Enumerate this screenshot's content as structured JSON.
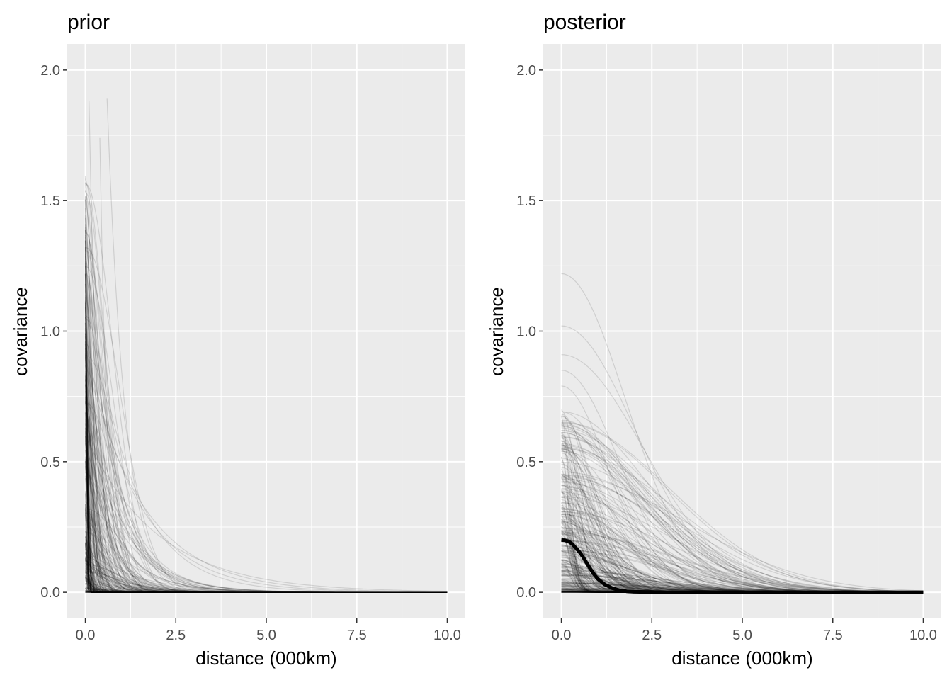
{
  "colors": {
    "panel_background": "#ebebeb",
    "grid_major": "#ffffff",
    "tick_label": "#4d4d4d",
    "sample_line": "#000000",
    "mean_line": "#000000"
  },
  "chart_data": [
    {
      "type": "line",
      "title": "prior",
      "xlabel": "distance (000km)",
      "ylabel": "covariance",
      "xlim": [
        -0.5,
        10.5
      ],
      "ylim": [
        -0.1,
        2.1
      ],
      "x_ticks": [
        "0.0",
        "2.5",
        "5.0",
        "7.5",
        "10.0"
      ],
      "y_ticks": [
        "0.0",
        "0.5",
        "1.0",
        "1.5",
        "2.0"
      ],
      "grid": true,
      "series_description": "~300 translucent Gaussian-process covariance draws; most decay to 0 within 1.5, a few extend to ~6",
      "samples": {
        "count": 300,
        "opacity": 0.12,
        "sigma_sq_range": [
          0.0,
          1.9
        ],
        "highlight_curves": [
          {
            "variance": 1.89,
            "start_x": 0.6,
            "rho": 0.5
          },
          {
            "variance": 1.74,
            "start_x": 0.4,
            "rho": 0.2
          },
          {
            "variance": 1.88,
            "start_x": 0.1,
            "rho": 0.25
          },
          {
            "variance": 1.25,
            "start_x": 0.0,
            "rho": 1.2
          },
          {
            "variance": 0.9,
            "start_x": 0.0,
            "rho": 1.6
          },
          {
            "variance": 0.6,
            "start_x": 0.0,
            "rho": 2.0
          }
        ]
      }
    },
    {
      "type": "line",
      "title": "posterior",
      "xlabel": "distance (000km)",
      "ylabel": "covariance",
      "xlim": [
        -0.5,
        10.5
      ],
      "ylim": [
        -0.1,
        2.1
      ],
      "x_ticks": [
        "0.0",
        "2.5",
        "5.0",
        "7.5",
        "10.0"
      ],
      "y_ticks": [
        "0.0",
        "0.5",
        "1.0",
        "1.5",
        "2.0"
      ],
      "grid": true,
      "series_description": "~300 translucent posterior covariance draws plus thick posterior median curve",
      "samples": {
        "count": 300,
        "opacity": 0.12,
        "highlight_curves": [
          {
            "variance": 1.22,
            "rho": 2.5
          },
          {
            "variance": 1.02,
            "rho": 2.9
          },
          {
            "variance": 0.91,
            "rho": 3.2
          },
          {
            "variance": 0.85,
            "rho": 2.2
          },
          {
            "variance": 0.79,
            "rho": 1.8
          },
          {
            "variance": 0.62,
            "rho": 3.8
          },
          {
            "variance": 0.55,
            "rho": 4.3
          },
          {
            "variance": 0.45,
            "rho": 4.8
          }
        ]
      },
      "median_curve": {
        "x": [
          0.0,
          0.1,
          0.2,
          0.3,
          0.4,
          0.5,
          0.6,
          0.7,
          0.8,
          0.9,
          1.0,
          1.2,
          1.4,
          1.6,
          1.8,
          2.0,
          3.0,
          5.0,
          7.5,
          10.0
        ],
        "y": [
          0.2,
          0.199,
          0.195,
          0.185,
          0.17,
          0.154,
          0.135,
          0.112,
          0.09,
          0.07,
          0.052,
          0.03,
          0.016,
          0.008,
          0.004,
          0.002,
          0.0,
          0.0,
          0.0,
          0.0
        ]
      }
    }
  ]
}
